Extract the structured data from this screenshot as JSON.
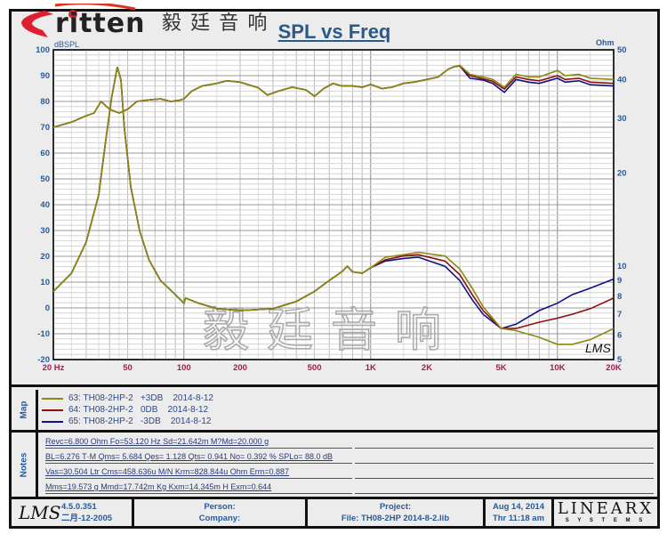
{
  "logo": {
    "brand": "ritten",
    "brand_initial": "E",
    "chinese": "毅 廷 音 响"
  },
  "watermark": "毅廷音响",
  "chart_data": {
    "type": "line",
    "title": "SPL vs Freq",
    "xlabel_unit": "Hz",
    "ylabel_left": "dBSPL",
    "ylabel_right": "Ohm",
    "x_scale": "log",
    "xlim": [
      20,
      20000
    ],
    "ylim_left": [
      -20,
      100
    ],
    "y_right_scale": "log",
    "ylim_right": [
      5,
      50
    ],
    "grid": true,
    "x_ticks": [
      {
        "v": 20,
        "l": "20 Hz"
      },
      {
        "v": 50,
        "l": "50"
      },
      {
        "v": 100,
        "l": "100"
      },
      {
        "v": 200,
        "l": "200"
      },
      {
        "v": 500,
        "l": "500"
      },
      {
        "v": 1000,
        "l": "1K"
      },
      {
        "v": 2000,
        "l": "2K"
      },
      {
        "v": 5000,
        "l": "5K"
      },
      {
        "v": 10000,
        "l": "10K"
      },
      {
        "v": 20000,
        "l": "20K"
      }
    ],
    "y_left_ticks": [
      100,
      90,
      80,
      70,
      60,
      50,
      40,
      30,
      20,
      10,
      0,
      -10,
      -20
    ],
    "y_right_ticks": [
      50,
      40,
      30,
      20,
      10,
      9,
      8,
      7,
      6,
      5
    ],
    "spl_freq": [
      20,
      25,
      30,
      33,
      36,
      40,
      45,
      50,
      56,
      63,
      75,
      85,
      95,
      100,
      110,
      125,
      150,
      170,
      200,
      250,
      280,
      320,
      380,
      450,
      500,
      560,
      630,
      700,
      800,
      900,
      1000,
      1150,
      1300,
      1500,
      1700,
      2000,
      2300,
      2600,
      2800,
      3000,
      3400,
      4000,
      4500,
      5200,
      6000,
      7000,
      8000,
      10000,
      11000,
      13000,
      15000,
      20000
    ],
    "spl_common": [
      70,
      72,
      74.5,
      75.5,
      80,
      77,
      75.5,
      77,
      80,
      80.5,
      81,
      80,
      80.5,
      81,
      84,
      86,
      87,
      88,
      87.5,
      85.3,
      82.5,
      84,
      85.5,
      84.5,
      82,
      85,
      87,
      86,
      86,
      85.5,
      86.6,
      85,
      85.5,
      87,
      87.5,
      88.5,
      89.5,
      92.5,
      93.5
    ],
    "imp_freq": [
      20,
      25,
      30,
      35,
      38,
      41,
      44,
      46,
      48,
      52,
      58,
      65,
      75,
      90,
      100,
      102,
      120,
      150,
      200,
      300,
      400,
      500,
      600,
      700,
      750,
      800,
      900,
      1000,
      1200,
      1500,
      1800,
      2500,
      3000,
      3500,
      4000,
      5000,
      6000,
      8000,
      10000,
      12000,
      15000,
      20000
    ],
    "imp_common": [
      8.3,
      9.5,
      12,
      17,
      25,
      35,
      44,
      40,
      28,
      18,
      13,
      10.5,
      9,
      8.1,
      7.6,
      7.9,
      7.6,
      7.3,
      7.2,
      7.3,
      7.7,
      8.3,
      9,
      9.6,
      10,
      9.6,
      9.5,
      9.9
    ],
    "series": [
      {
        "name": "63: TH08-2HP-2   +3DB    2014-8-12",
        "color": "#8a8a10",
        "spl_tail": [
          94,
          90.5,
          89.5,
          88.5,
          85.5,
          90.5,
          89.5,
          89.5,
          92,
          90,
          90.5,
          89,
          88.5
        ],
        "imp_tail": [
          10.7,
          10.9,
          11.1,
          10.8,
          9.8,
          8.5,
          7.4,
          6.3,
          6.2,
          5.9,
          5.6,
          5.6,
          5.8,
          6.3
        ]
      },
      {
        "name": "64: TH08-2HP-2   0DB    2014-8-12",
        "color": "#8a1010",
        "spl_tail": [
          93.8,
          90,
          88.8,
          87.8,
          84.8,
          89.5,
          88.5,
          88,
          90,
          88.5,
          89,
          87.5,
          87
        ],
        "imp_tail": [
          10.5,
          10.8,
          10.9,
          10.4,
          9.4,
          8.1,
          7.2,
          6.3,
          6.3,
          6.6,
          6.8,
          7.0,
          7.3,
          7.9
        ]
      },
      {
        "name": "65: TH08-2HP-2   -3DB    2014-8-12",
        "color": "#10108a",
        "spl_tail": [
          93.8,
          89,
          88.3,
          87,
          83.5,
          88.5,
          87.5,
          87,
          89,
          87.5,
          88,
          86.5,
          86
        ],
        "imp_tail": [
          10.4,
          10.6,
          10.7,
          10,
          9,
          7.8,
          7.0,
          6.3,
          6.5,
          7.2,
          7.6,
          8.1,
          8.5,
          9.1
        ]
      }
    ]
  },
  "map": {
    "label": "Map"
  },
  "notes": {
    "label": "Notes",
    "lines": [
      "Revc=6.800 Ohm  Fo=53.120 Hz  Sd=21.642m M?Md=20.000 g",
      "BL=6.276 T·M  Qms= 5.684  Qes= 1.128  Qts= 0.941  No= 0.392 %  SPLo= 88.0 dB",
      "Vas=30.504 Ltr  Cms=458.636u M/N  Krm=828.844u Ohm  Erm=0.887",
      "Mms=19.573 g  Mmd=17.742m Kg  Kxm=14.345m H  Exm=0.644"
    ]
  },
  "footer": {
    "lms_logo": "LMS",
    "version": "4.5.0.351",
    "build_date": "二月-12-2005",
    "person": "Person:",
    "company": "Company:",
    "project": "Project:",
    "file": "File: TH08-2HP    2014-8-2.lib",
    "date": "Aug 14, 2014",
    "time": "Thr 11:18 am",
    "linearx_logo": "LINEARX",
    "linearx_sub": "S Y S T E M S"
  },
  "plot_logo": "LMS",
  "colors": {
    "frame": "#111111",
    "axis_text": "#2a5a9a",
    "x_tick_text": "#a02050",
    "background": "#ececec"
  }
}
